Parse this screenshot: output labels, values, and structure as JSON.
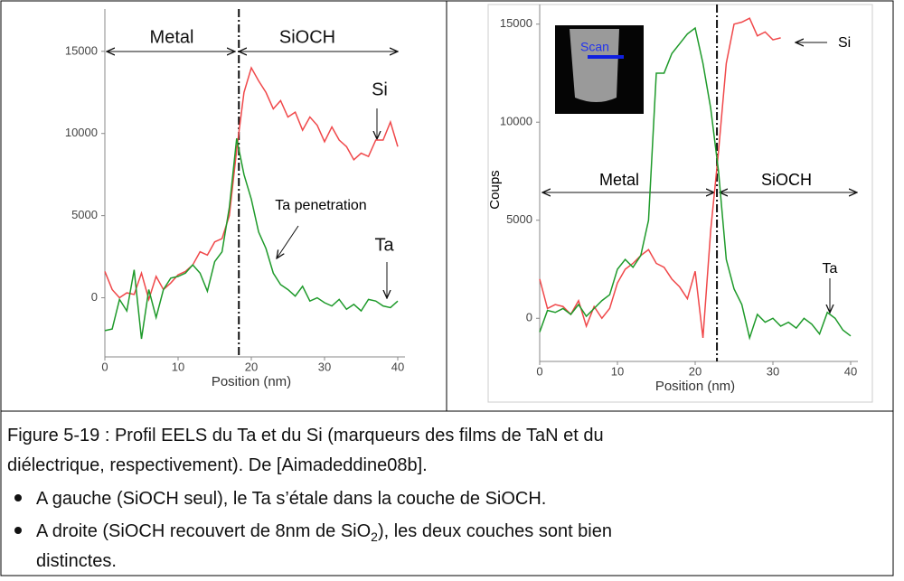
{
  "chart_data": [
    {
      "type": "line",
      "x_label": "Position (nm)",
      "xlim": [
        0,
        40
      ],
      "ylim": [
        -3600,
        17300
      ],
      "xticks": [
        0,
        10,
        20,
        30,
        40
      ],
      "yticks": [
        0,
        5000,
        10000,
        15000
      ],
      "interface_x": 18.3,
      "region_labels": [
        "Metal",
        "SiOCH"
      ],
      "annotation": "Ta penetration",
      "x": [
        0,
        1,
        2,
        3,
        4,
        5,
        6,
        7,
        8,
        9,
        10,
        11,
        12,
        13,
        14,
        15,
        16,
        17,
        18,
        19,
        20,
        21,
        22,
        23,
        24,
        25,
        26,
        27,
        28,
        29,
        30,
        31,
        32,
        33,
        34,
        35,
        36,
        37,
        38,
        39,
        40
      ],
      "series": [
        {
          "name": "Si",
          "color": "#f0484a",
          "values": [
            1600,
            500,
            0,
            300,
            200,
            1500,
            -100,
            1300,
            500,
            900,
            1400,
            1600,
            2000,
            2800,
            2600,
            3400,
            3600,
            5000,
            9000,
            12500,
            14000,
            13200,
            12500,
            11500,
            12000,
            11000,
            11300,
            10200,
            11000,
            10500,
            9500,
            10400,
            9600,
            9200,
            8400,
            8800,
            8600,
            9600,
            9600,
            10700,
            9200
          ]
        },
        {
          "name": "Ta",
          "color": "#1e9a2a",
          "values": [
            -2000,
            -1900,
            -100,
            -800,
            1700,
            -2500,
            500,
            -1200,
            500,
            1200,
            1300,
            1500,
            2000,
            1500,
            400,
            2200,
            2800,
            5500,
            9700,
            7500,
            6000,
            4000,
            3000,
            1500,
            800,
            500,
            100,
            700,
            -200,
            0,
            -300,
            -500,
            -100,
            -700,
            -400,
            -800,
            -100,
            -200,
            -500,
            -600,
            -200
          ]
        }
      ]
    },
    {
      "type": "line",
      "x_label": "Position (nm)",
      "y_label": "Coups",
      "xlim": [
        0,
        40
      ],
      "ylim": [
        -2200,
        16000
      ],
      "xticks": [
        0,
        10,
        20,
        30,
        40
      ],
      "yticks": [
        0,
        5000,
        10000,
        15000
      ],
      "interface_x": 22.8,
      "region_labels": [
        "Metal",
        "SiOCH"
      ],
      "inset_label": "Scan",
      "x": [
        0,
        1,
        2,
        3,
        4,
        5,
        6,
        7,
        8,
        9,
        10,
        11,
        12,
        13,
        14,
        15,
        16,
        17,
        18,
        19,
        20,
        21,
        22,
        23,
        24,
        25,
        26,
        27,
        28,
        29,
        30,
        31,
        32,
        33,
        34,
        35,
        36,
        37,
        38,
        39,
        40
      ],
      "series": [
        {
          "name": "Si",
          "color": "#f0484a",
          "values": [
            2000,
            500,
            700,
            600,
            200,
            900,
            -400,
            600,
            0,
            500,
            1800,
            2500,
            2800,
            3200,
            3500,
            2800,
            2600,
            2000,
            1600,
            1000,
            2400,
            -1000,
            4500,
            8500,
            13000,
            15000,
            15100,
            15300,
            14400,
            14600,
            14200,
            14300,
            null,
            null,
            null,
            null,
            null,
            null,
            null,
            null,
            null
          ]
        },
        {
          "name": "Ta",
          "color": "#1e9a2a",
          "values": [
            -700,
            400,
            300,
            500,
            200,
            700,
            100,
            500,
            900,
            1200,
            2500,
            3000,
            2600,
            3200,
            5000,
            12500,
            12500,
            13500,
            14000,
            14500,
            14800,
            13000,
            10700,
            7500,
            3000,
            1500,
            700,
            -1000,
            200,
            -200,
            0,
            -400,
            -200,
            -500,
            0,
            -300,
            -800,
            300,
            0,
            -600,
            -900
          ]
        }
      ]
    }
  ],
  "caption": {
    "lines": [
      "Figure 5-19 : Profil EELS du Ta et du Si (marqueurs des films de TaN et du",
      "diélectrique, respectivement). De [Aimadeddine08b]."
    ],
    "bullets": [
      [
        "A gauche (SiOCH seul), le Ta s’étale dans la couche de SiOCH."
      ],
      [
        "A droite (SiOCH recouvert de 8nm de SiO",
        "2",
        "), les deux couches sont bien",
        "distinctes."
      ]
    ]
  }
}
